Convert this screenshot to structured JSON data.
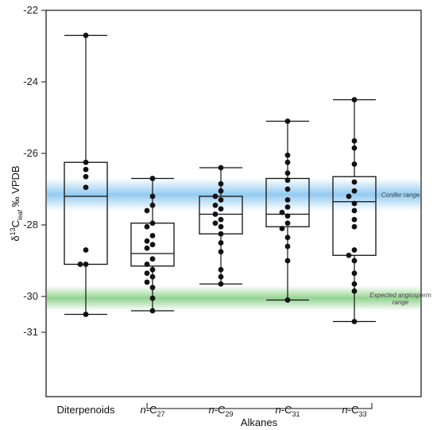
{
  "chart_data": {
    "type": "box",
    "ylabel": {
      "delta": "δ",
      "sup": "13",
      "c": "C",
      "sub": "leaf",
      "unit": " ‰ VPDB"
    },
    "ylim": [
      -31.8,
      -22
    ],
    "yticks": [
      -22,
      -24,
      -26,
      -28,
      -30,
      -31
    ],
    "ytick_labels": [
      "-22",
      "-24",
      "-26",
      "-28",
      "-30",
      "-31"
    ],
    "categories": [
      {
        "name": "Diterpenoids",
        "italic_prefix": "",
        "base": "",
        "sub": ""
      },
      {
        "name": "n-C27",
        "italic_prefix": "n",
        "base": "-C",
        "sub": "27"
      },
      {
        "name": "n-C29",
        "italic_prefix": "n",
        "base": "-C",
        "sub": "29"
      },
      {
        "name": "n-C31",
        "italic_prefix": "n",
        "base": "-C",
        "sub": "31"
      },
      {
        "name": "n-C33",
        "italic_prefix": "n",
        "base": "-C",
        "sub": "33"
      }
    ],
    "group_label": "Alkanes",
    "boxes": [
      {
        "min": -30.5,
        "q1": -29.1,
        "median": -27.2,
        "q3": -26.25,
        "max": -22.7
      },
      {
        "min": -30.4,
        "q1": -29.15,
        "median": -28.8,
        "q3": -27.95,
        "max": -26.7
      },
      {
        "min": -29.65,
        "q1": -28.25,
        "median": -27.7,
        "q3": -27.2,
        "max": -26.4
      },
      {
        "min": -30.1,
        "q1": -28.05,
        "median": -27.7,
        "q3": -26.7,
        "max": -25.1
      },
      {
        "min": -30.7,
        "q1": -28.85,
        "median": -27.35,
        "q3": -26.65,
        "max": -24.5
      }
    ],
    "points": [
      [
        -22.7,
        -26.25,
        -26.45,
        -26.65,
        -26.95,
        -28.7,
        -29.1,
        -29.1,
        -30.5
      ],
      [
        -26.7,
        -27.2,
        -27.45,
        -27.6,
        -27.95,
        -28.05,
        -28.3,
        -28.45,
        -28.55,
        -28.65,
        -28.95,
        -29.1,
        -29.25,
        -29.35,
        -29.45,
        -29.6,
        -29.75,
        -30.05,
        -30.4
      ],
      [
        -26.4,
        -26.85,
        -27.05,
        -27.2,
        -27.3,
        -27.45,
        -27.55,
        -27.7,
        -27.85,
        -27.95,
        -28.05,
        -28.25,
        -28.5,
        -28.75,
        -29.25,
        -29.45,
        -29.65
      ],
      [
        -25.1,
        -26.05,
        -26.25,
        -26.55,
        -26.75,
        -27.0,
        -27.3,
        -27.5,
        -27.65,
        -27.75,
        -27.95,
        -28.1,
        -28.35,
        -28.6,
        -29.0,
        -30.1
      ],
      [
        -24.5,
        -25.65,
        -25.85,
        -26.3,
        -26.8,
        -27.05,
        -27.2,
        -27.4,
        -27.6,
        -27.85,
        -28.05,
        -28.7,
        -28.85,
        -29.0,
        -29.35,
        -29.65,
        -29.85,
        -30.7
      ]
    ],
    "bands": [
      {
        "label_lines": [
          "Conifer range"
        ],
        "center": -27.15,
        "spread": 0.45,
        "color": "#3aa0e6"
      },
      {
        "label_lines": [
          "Expected angiosperm",
          "range"
        ],
        "center": -30.05,
        "spread": 0.35,
        "color": "#4cb84a"
      }
    ],
    "grid": false
  }
}
